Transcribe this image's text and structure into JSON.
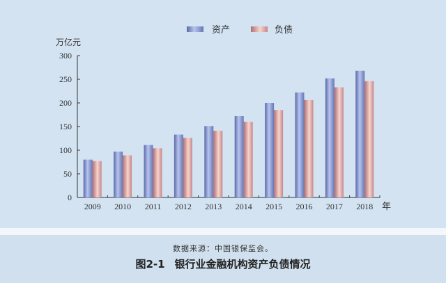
{
  "legend": {
    "assets_label": "资产",
    "liabilities_label": "负债"
  },
  "axis": {
    "y_unit": "万亿元",
    "x_unit": "年"
  },
  "caption": {
    "source": "数据来源：中国银保监会。",
    "figure_number": "图2-1",
    "figure_title": "银行业金融机构资产负债情况"
  },
  "colors": {
    "background": "#d3e3f1",
    "assets": "#6d80bc",
    "liabilities": "#c98488"
  },
  "chart_data": {
    "type": "bar",
    "title": "银行业金融机构资产负债情况",
    "xlabel": "年",
    "ylabel": "万亿元",
    "ylim": [
      0,
      300
    ],
    "yticks": [
      0,
      50,
      100,
      150,
      200,
      250,
      300
    ],
    "grid": false,
    "legend_position": "top-center",
    "categories": [
      "2009",
      "2010",
      "2011",
      "2012",
      "2013",
      "2014",
      "2015",
      "2016",
      "2017",
      "2018"
    ],
    "series": [
      {
        "name": "资产",
        "values": [
          80,
          97,
          111,
          133,
          151,
          172,
          200,
          222,
          252,
          268
        ]
      },
      {
        "name": "负债",
        "values": [
          77,
          89,
          104,
          126,
          141,
          160,
          185,
          206,
          233,
          246
        ]
      }
    ]
  }
}
